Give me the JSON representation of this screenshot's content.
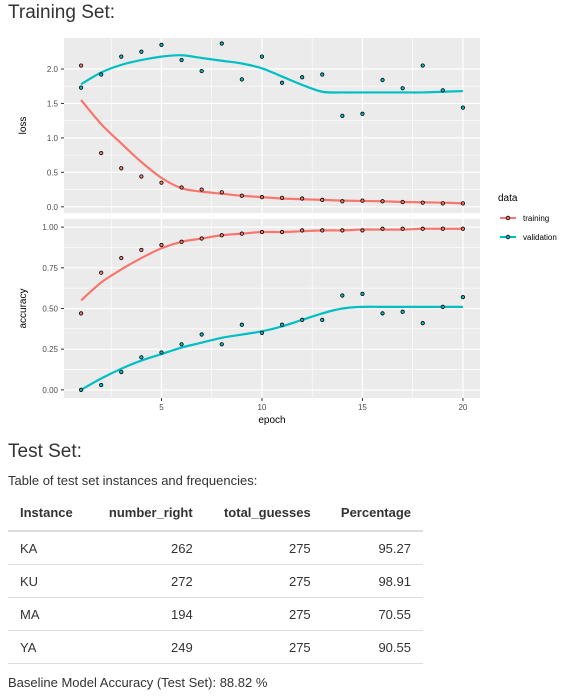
{
  "training_title": "Training Set:",
  "test_title": "Test Set:",
  "table_caption": "Table of test set instances and frequencies:",
  "baseline_text": "Baseline Model Accuracy (Test Set): 88.82 %",
  "test_table": {
    "columns": [
      "Instance",
      "number_right",
      "total_guesses",
      "Percentage"
    ],
    "rows": [
      [
        "KA",
        "262",
        "275",
        "95.27"
      ],
      [
        "KU",
        "272",
        "275",
        "98.91"
      ],
      [
        "MA",
        "194",
        "275",
        "70.55"
      ],
      [
        "YA",
        "249",
        "275",
        "90.55"
      ]
    ]
  },
  "chart_data": {
    "type": "scatter",
    "xlabel": "epoch",
    "x_ticks": [
      5,
      10,
      15,
      20
    ],
    "xlim": [
      0.15,
      20.85
    ],
    "legend": {
      "title": "data",
      "placement": "right",
      "entries": [
        "training",
        "validation"
      ]
    },
    "colors": {
      "training": "#F8766D",
      "validation": "#00BFC4",
      "panel": "#EBEBEB",
      "grid": "#FFFFFF"
    },
    "grid": true,
    "smoothed_lines": true,
    "x": [
      1,
      2,
      3,
      4,
      5,
      6,
      7,
      8,
      9,
      10,
      11,
      12,
      13,
      14,
      15,
      16,
      17,
      18,
      19,
      20
    ],
    "panels": [
      {
        "name": "loss",
        "ylabel": "loss",
        "ylim": [
          -0.09,
          2.45
        ],
        "y_ticks": [
          "0.0",
          "0.5",
          "1.0",
          "1.5",
          "2.0"
        ],
        "y_tick_values": [
          0,
          0.5,
          1.0,
          1.5,
          2.0
        ],
        "series": [
          {
            "name": "training",
            "values": [
              2.05,
              0.78,
              0.56,
              0.44,
              0.35,
              0.28,
              0.25,
              0.21,
              0.16,
              0.14,
              0.13,
              0.12,
              0.1,
              0.08,
              0.09,
              0.08,
              0.07,
              0.06,
              0.05,
              0.05
            ],
            "smooth": [
              1.55,
              1.2,
              0.92,
              0.65,
              0.42,
              0.27,
              0.22,
              0.19,
              0.16,
              0.14,
              0.12,
              0.11,
              0.1,
              0.09,
              0.085,
              0.08,
              0.07,
              0.065,
              0.06,
              0.05
            ]
          },
          {
            "name": "validation",
            "values": [
              1.73,
              1.92,
              2.18,
              2.25,
              2.35,
              2.13,
              1.97,
              2.37,
              1.85,
              2.18,
              1.8,
              1.88,
              1.92,
              1.32,
              1.35,
              1.84,
              1.72,
              2.05,
              1.69,
              1.44
            ],
            "smooth": [
              1.78,
              1.95,
              2.06,
              2.13,
              2.18,
              2.2,
              2.16,
              2.12,
              2.08,
              2.01,
              1.89,
              1.77,
              1.67,
              1.66,
              1.66,
              1.66,
              1.66,
              1.66,
              1.67,
              1.68
            ]
          }
        ]
      },
      {
        "name": "accuracy",
        "ylabel": "accuracy",
        "ylim": [
          -0.05,
          1.05
        ],
        "y_ticks": [
          "0.00",
          "0.25",
          "0.50",
          "0.75",
          "1.00"
        ],
        "y_tick_values": [
          0,
          0.25,
          0.5,
          0.75,
          1.0
        ],
        "series": [
          {
            "name": "training",
            "values": [
              0.47,
              0.72,
              0.81,
              0.86,
              0.89,
              0.91,
              0.93,
              0.95,
              0.96,
              0.97,
              0.97,
              0.98,
              0.98,
              0.98,
              0.98,
              0.99,
              0.99,
              0.99,
              0.99,
              0.99
            ],
            "smooth": [
              0.55,
              0.66,
              0.74,
              0.81,
              0.87,
              0.91,
              0.93,
              0.95,
              0.96,
              0.97,
              0.97,
              0.975,
              0.98,
              0.98,
              0.985,
              0.985,
              0.985,
              0.99,
              0.99,
              0.99
            ]
          },
          {
            "name": "validation",
            "values": [
              0.0,
              0.03,
              0.11,
              0.2,
              0.23,
              0.28,
              0.34,
              0.28,
              0.4,
              0.35,
              0.4,
              0.43,
              0.43,
              0.58,
              0.59,
              0.47,
              0.48,
              0.41,
              0.51,
              0.57
            ],
            "smooth": [
              0.0,
              0.07,
              0.13,
              0.18,
              0.22,
              0.26,
              0.29,
              0.32,
              0.34,
              0.36,
              0.39,
              0.43,
              0.47,
              0.5,
              0.51,
              0.51,
              0.51,
              0.51,
              0.51,
              0.51
            ]
          }
        ]
      }
    ]
  }
}
